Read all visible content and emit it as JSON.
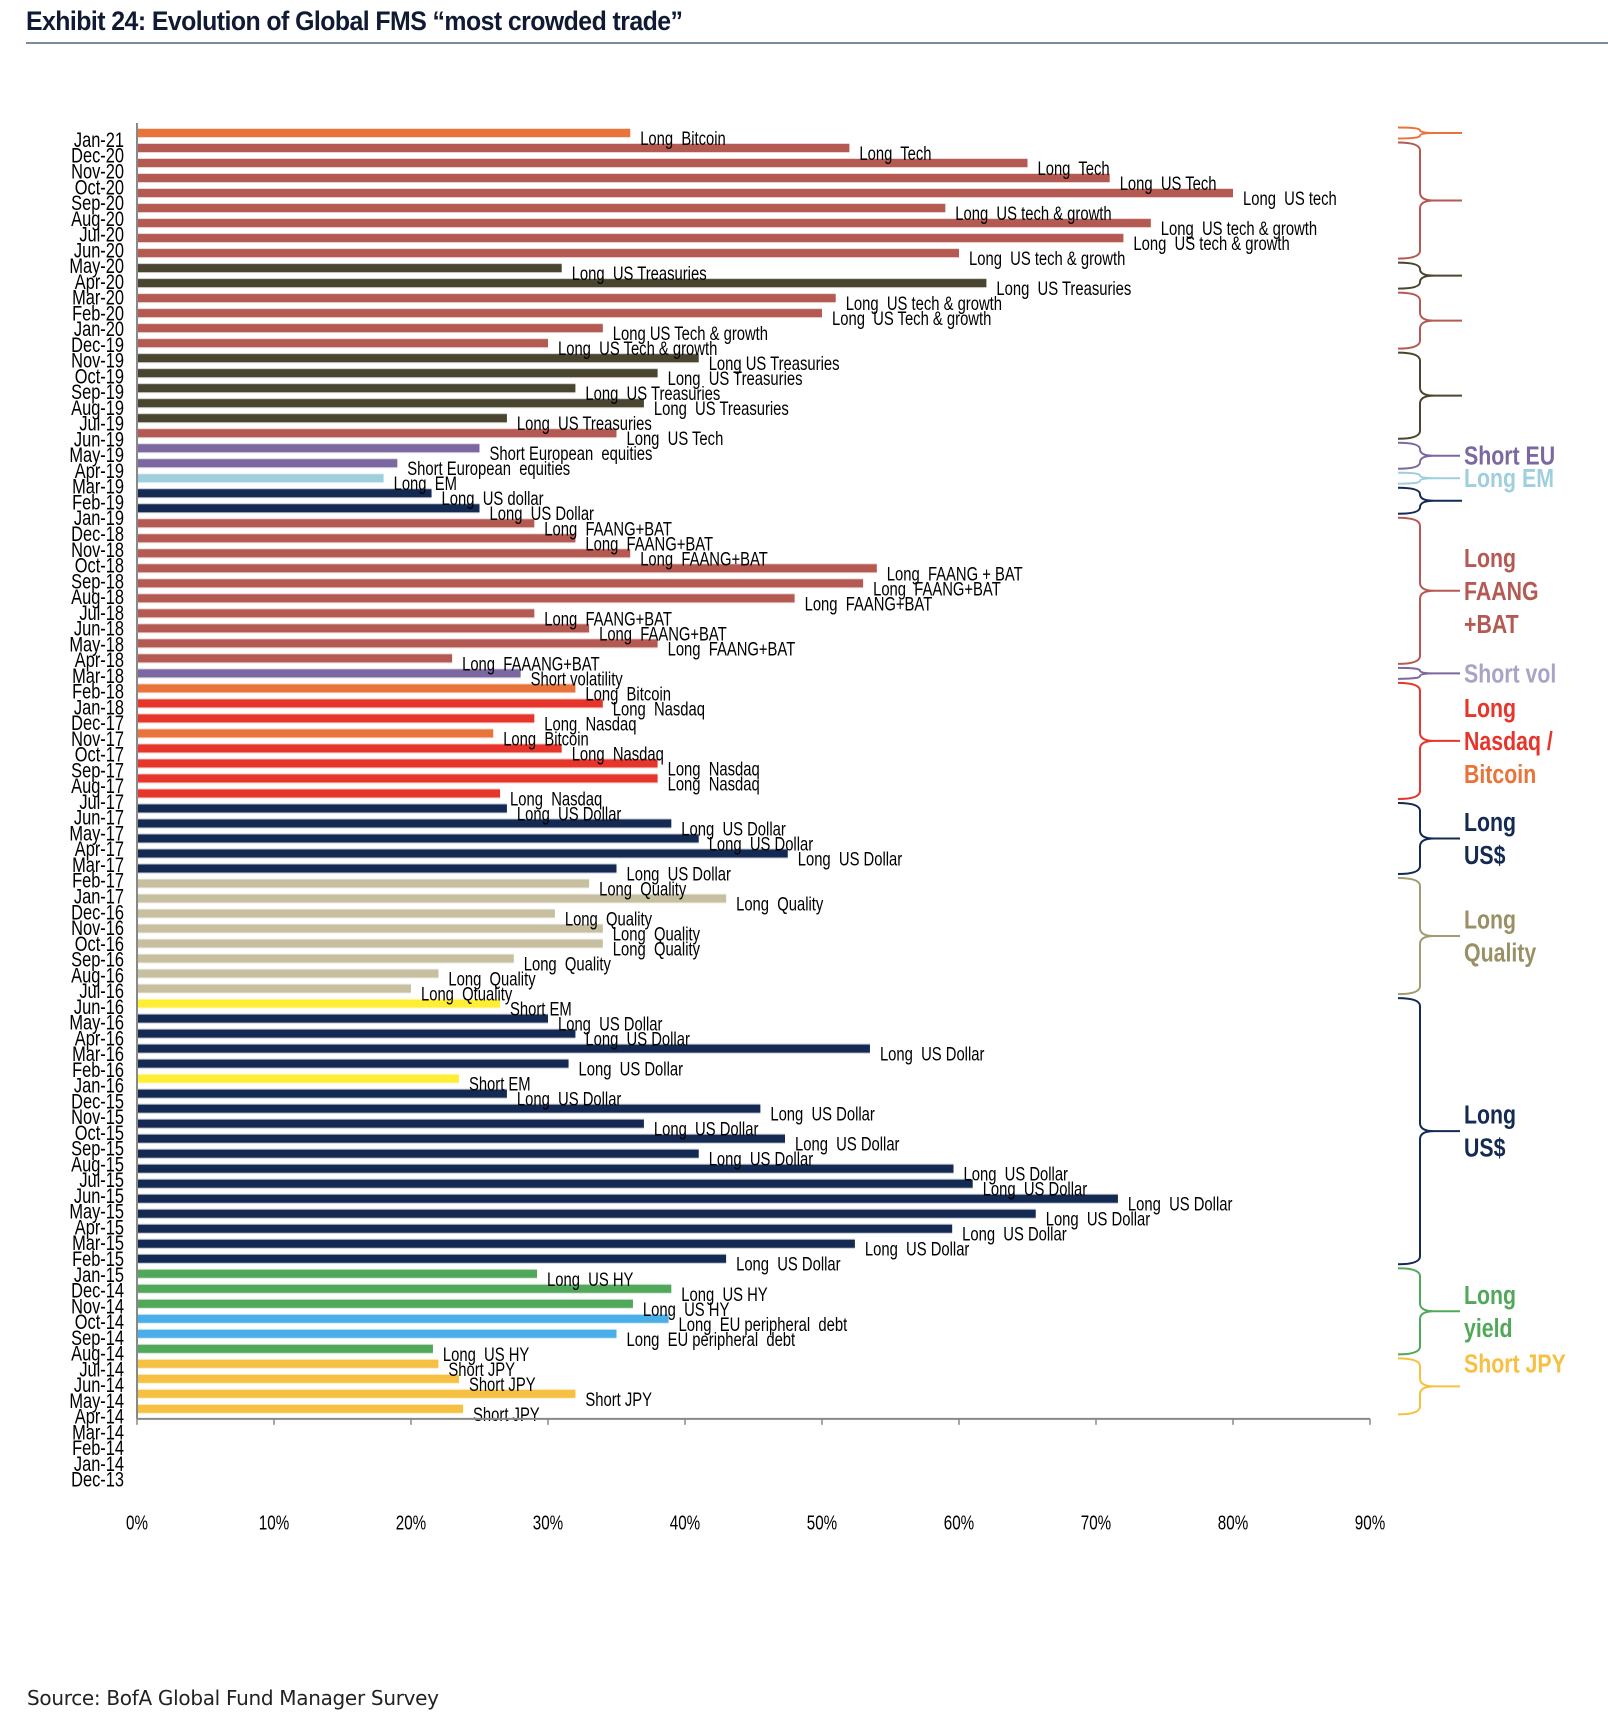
{
  "header": {
    "title": "Exhibit 24: Evolution of Global FMS “most crowded trade”"
  },
  "footer": {
    "source": "Source: BofA Global Fund Manager Survey"
  },
  "colors": {
    "bitcoin": "#e8743b",
    "tech": "#b45a52",
    "treasuries": "#4a4530",
    "short_eu": "#7b68a0",
    "long_em": "#9fcfdd",
    "usd": "#142a52",
    "short_vol": "#7b68a0",
    "nasdaq": "#e6362b",
    "quality": "#c6bfa0",
    "short_em": "#ffee33",
    "us_hy": "#52a85a",
    "eu_periph": "#4aaee8",
    "jpy": "#f6c043",
    "axis": "#888888"
  },
  "chart_data": {
    "type": "bar",
    "orientation": "horizontal",
    "title": "Exhibit 24: Evolution of Global FMS “most crowded trade”",
    "xlabel": "",
    "ylabel": "",
    "xlim": [
      0,
      90
    ],
    "x_ticks": [
      "0%",
      "10%",
      "20%",
      "30%",
      "40%",
      "50%",
      "60%",
      "70%",
      "80%",
      "90%"
    ],
    "grid": false,
    "legend": "right-side brackets",
    "bars": [
      {
        "date": "Jan-21",
        "value": 36,
        "label": "Long  Bitcoin",
        "color_key": "bitcoin"
      },
      {
        "date": "Dec-20",
        "value": 52,
        "label": "Long  Tech",
        "color_key": "tech"
      },
      {
        "date": "Nov-20",
        "value": 65,
        "label": "Long  Tech",
        "color_key": "tech"
      },
      {
        "date": "Oct-20",
        "value": 71,
        "label": "Long  US Tech",
        "color_key": "tech"
      },
      {
        "date": "Sep-20",
        "value": 80,
        "label": "Long  US tech",
        "color_key": "tech"
      },
      {
        "date": "Aug-20",
        "value": 59,
        "label": "Long  US tech & growth",
        "color_key": "tech"
      },
      {
        "date": "Jul-20",
        "value": 74,
        "label": "Long  US tech & growth",
        "color_key": "tech"
      },
      {
        "date": "Jun-20",
        "value": 72,
        "label": "Long  US tech & growth",
        "color_key": "tech"
      },
      {
        "date": "May-20",
        "value": 60,
        "label": "Long  US tech & growth",
        "color_key": "tech"
      },
      {
        "date": "Apr-20",
        "value": 31,
        "label": "Long  US Treasuries",
        "color_key": "treasuries"
      },
      {
        "date": "Mar-20",
        "value": 62,
        "label": "Long  US Treasuries",
        "color_key": "treasuries"
      },
      {
        "date": "Feb-20",
        "value": 51,
        "label": "Long  US tech & growth",
        "color_key": "tech"
      },
      {
        "date": "Jan-20",
        "value": 50,
        "label": "Long  US Tech & growth",
        "color_key": "tech"
      },
      {
        "date": "Dec-19",
        "value": 34,
        "label": "Long US Tech & growth",
        "color_key": "tech"
      },
      {
        "date": "Nov-19",
        "value": 30,
        "label": "Long  US Tech & growth",
        "color_key": "tech"
      },
      {
        "date": "Oct-19",
        "value": 41,
        "label": "Long US Treasuries",
        "color_key": "treasuries"
      },
      {
        "date": "Sep-19",
        "value": 38,
        "label": "Long  US Treasuries",
        "color_key": "treasuries"
      },
      {
        "date": "Aug-19",
        "value": 32,
        "label": "Long  US Treasuries",
        "color_key": "treasuries"
      },
      {
        "date": "Jul-19",
        "value": 37,
        "label": "Long  US Treasuries",
        "color_key": "treasuries"
      },
      {
        "date": "Jun-19",
        "value": 27,
        "label": "Long  US Treasuries",
        "color_key": "treasuries"
      },
      {
        "date": "May-19",
        "value": 35,
        "label": "Long  US Tech",
        "color_key": "tech"
      },
      {
        "date": "Apr-19",
        "value": 25,
        "label": "Short European  equities",
        "color_key": "short_eu"
      },
      {
        "date": "Mar-19",
        "value": 19,
        "label": "Short European  equities",
        "color_key": "short_eu"
      },
      {
        "date": "Feb-19",
        "value": 18,
        "label": "Long  EM",
        "color_key": "long_em"
      },
      {
        "date": "Jan-19",
        "value": 21.5,
        "label": "Long  US dollar",
        "color_key": "usd"
      },
      {
        "date": "Dec-18",
        "value": 25,
        "label": "Long  US Dollar",
        "color_key": "usd"
      },
      {
        "date": "Nov-18",
        "value": 29,
        "label": "Long  FAANG+BAT",
        "color_key": "tech"
      },
      {
        "date": "Oct-18",
        "value": 32,
        "label": "Long  FAANG+BAT",
        "color_key": "tech"
      },
      {
        "date": "Sep-18",
        "value": 36,
        "label": "Long  FAANG+BAT",
        "color_key": "tech"
      },
      {
        "date": "Aug-18",
        "value": 54,
        "label": "Long  FAANG + BAT",
        "color_key": "tech"
      },
      {
        "date": "Jul-18",
        "value": 53,
        "label": "Long  FAANG+BAT",
        "color_key": "tech"
      },
      {
        "date": "Jun-18",
        "value": 48,
        "label": "Long  FAANG+BAT",
        "color_key": "tech"
      },
      {
        "date": "May-18",
        "value": 29,
        "label": "Long  FAANG+BAT",
        "color_key": "tech"
      },
      {
        "date": "Apr-18",
        "value": 33,
        "label": "Long  FAANG+BAT",
        "color_key": "tech"
      },
      {
        "date": "Mar-18",
        "value": 38,
        "label": "Long  FAANG+BAT",
        "color_key": "tech"
      },
      {
        "date": "Feb-18",
        "value": 23,
        "label": "Long  FAAANG+BAT",
        "color_key": "tech"
      },
      {
        "date": "Jan-18",
        "value": 28,
        "label": "Short volatility",
        "color_key": "short_vol"
      },
      {
        "date": "Dec-17",
        "value": 32,
        "label": "Long  Bitcoin",
        "color_key": "bitcoin"
      },
      {
        "date": "Nov-17",
        "value": 34,
        "label": "Long  Nasdaq",
        "color_key": "nasdaq"
      },
      {
        "date": "Oct-17",
        "value": 29,
        "label": "Long  Nasdaq",
        "color_key": "nasdaq"
      },
      {
        "date": "Sep-17",
        "value": 26,
        "label": "Long  Bitcoin",
        "color_key": "bitcoin"
      },
      {
        "date": "Aug-17",
        "value": 31,
        "label": "Long  Nasdaq",
        "color_key": "nasdaq"
      },
      {
        "date": "Jul-17",
        "value": 38,
        "label": "Long  Nasdaq",
        "color_key": "nasdaq"
      },
      {
        "date": "Jun-17",
        "value": 38,
        "label": "Long  Nasdaq",
        "color_key": "nasdaq"
      },
      {
        "date": "May-17",
        "value": 26.5,
        "label": "Long  Nasdaq",
        "color_key": "nasdaq"
      },
      {
        "date": "Apr-17",
        "value": 27,
        "label": "Long  US Dollar",
        "color_key": "usd"
      },
      {
        "date": "Mar-17",
        "value": 39,
        "label": "Long  US Dollar",
        "color_key": "usd"
      },
      {
        "date": "Feb-17",
        "value": 41,
        "label": "Long  US Dollar",
        "color_key": "usd"
      },
      {
        "date": "Jan-17",
        "value": 47.5,
        "label": "Long  US Dollar",
        "color_key": "usd"
      },
      {
        "date": "Dec-16",
        "value": 35,
        "label": "Long  US Dollar",
        "color_key": "usd"
      },
      {
        "date": "Nov-16",
        "value": 33,
        "label": "Long  Quality",
        "color_key": "quality"
      },
      {
        "date": "Oct-16",
        "value": 43,
        "label": "Long  Quality",
        "color_key": "quality"
      },
      {
        "date": "Sep-16",
        "value": 30.5,
        "label": "Long  Quality",
        "color_key": "quality"
      },
      {
        "date": "Aug-16",
        "value": 34,
        "label": "Long  Quality",
        "color_key": "quality"
      },
      {
        "date": "Jul-16",
        "value": 34,
        "label": "Long  Quality",
        "color_key": "quality"
      },
      {
        "date": "Jun-16",
        "value": 27.5,
        "label": "Long  Quality",
        "color_key": "quality"
      },
      {
        "date": "May-16",
        "value": 22,
        "label": "Long  Quality",
        "color_key": "quality"
      },
      {
        "date": "Apr-16",
        "value": 20,
        "label": "Long  Qtuality",
        "color_key": "quality"
      },
      {
        "date": "Mar-16",
        "value": 26.5,
        "label": "Short EM",
        "color_key": "short_em"
      },
      {
        "date": "Feb-16",
        "value": 30,
        "label": "Long  US Dollar",
        "color_key": "usd"
      },
      {
        "date": "Jan-16",
        "value": 32,
        "label": "Long  US Dollar",
        "color_key": "usd"
      },
      {
        "date": "Dec-15",
        "value": 53.5,
        "label": "Long  US Dollar",
        "color_key": "usd"
      },
      {
        "date": "Nov-15",
        "value": 31.5,
        "label": "Long  US Dollar",
        "color_key": "usd"
      },
      {
        "date": "Oct-15",
        "value": 23.5,
        "label": "Short EM",
        "color_key": "short_em"
      },
      {
        "date": "Sep-15",
        "value": 27,
        "label": "Long  US Dollar",
        "color_key": "usd"
      },
      {
        "date": "Aug-15",
        "value": 45.5,
        "label": "Long  US Dollar",
        "color_key": "usd"
      },
      {
        "date": "Jul-15",
        "value": 37,
        "label": "Long  US Dollar",
        "color_key": "usd"
      },
      {
        "date": "Jun-15",
        "value": 47.3,
        "label": "Long  US Dollar",
        "color_key": "usd"
      },
      {
        "date": "May-15",
        "value": 41,
        "label": "Long  US Dollar",
        "color_key": "usd"
      },
      {
        "date": "Apr-15",
        "value": 59.6,
        "label": "Long  US Dollar",
        "color_key": "usd"
      },
      {
        "date": "Mar-15",
        "value": 61,
        "label": "Long  US Dollar",
        "color_key": "usd"
      },
      {
        "date": "Feb-15",
        "value": 71.6,
        "label": "Long  US Dollar",
        "color_key": "usd"
      },
      {
        "date": "Jan-15",
        "value": 65.6,
        "label": "Long  US Dollar",
        "color_key": "usd"
      },
      {
        "date": "Dec-14",
        "value": 59.5,
        "label": "Long  US Dollar",
        "color_key": "usd"
      },
      {
        "date": "Nov-14",
        "value": 52.4,
        "label": "Long  US Dollar",
        "color_key": "usd"
      },
      {
        "date": "Oct-14",
        "value": 43,
        "label": "Long  US Dollar",
        "color_key": "usd"
      },
      {
        "date": "Sep-14",
        "value": 29.2,
        "label": "Long  US HY",
        "color_key": "us_hy"
      },
      {
        "date": "Aug-14",
        "value": 39,
        "label": "Long  US HY",
        "color_key": "us_hy"
      },
      {
        "date": "Jul-14",
        "value": 36.2,
        "label": "Long  US HY",
        "color_key": "us_hy"
      },
      {
        "date": "Jun-14",
        "value": 38.8,
        "label": "Long  EU peripheral  debt",
        "color_key": "eu_periph"
      },
      {
        "date": "May-14",
        "value": 35,
        "label": "Long  EU peripheral  debt",
        "color_key": "eu_periph"
      },
      {
        "date": "Apr-14",
        "value": 21.6,
        "label": "Long  US HY",
        "color_key": "us_hy"
      },
      {
        "date": "Mar-14",
        "value": 22,
        "label": "Short JPY",
        "color_key": "jpy"
      },
      {
        "date": "Feb-14",
        "value": 23.5,
        "label": "Short JPY",
        "color_key": "jpy"
      },
      {
        "date": "Jan-14",
        "value": 32,
        "label": "Short JPY",
        "color_key": "jpy"
      },
      {
        "date": "Dec-13",
        "value": 23.8,
        "label": "Short JPY",
        "color_key": "jpy"
      }
    ],
    "groups": [
      {
        "from": "Jan-21",
        "to": "Jan-21",
        "color_key": "bitcoin",
        "lines": []
      },
      {
        "from": "Dec-20",
        "to": "May-20",
        "color_key": "tech",
        "lines": []
      },
      {
        "from": "Apr-20",
        "to": "Mar-20",
        "color_key": "treasuries",
        "lines": []
      },
      {
        "from": "Feb-20",
        "to": "Nov-19",
        "color_key": "tech",
        "lines": []
      },
      {
        "from": "Oct-19",
        "to": "May-19",
        "color_key": "treasuries",
        "lines": []
      },
      {
        "from": "Apr-19",
        "to": "Mar-19",
        "color_key": "short_eu",
        "lines": [
          "Short EU"
        ]
      },
      {
        "from": "Feb-19",
        "to": "Feb-19",
        "color_key": "long_em",
        "lines": [
          "Long EM"
        ]
      },
      {
        "from": "Jan-19",
        "to": "Dec-18",
        "color_key": "usd",
        "lines": []
      },
      {
        "from": "Nov-18",
        "to": "Feb-18",
        "color_key": "tech",
        "lines": [
          "Long",
          "FAANG",
          "+BAT"
        ]
      },
      {
        "from": "Jan-18",
        "to": "Jan-18",
        "color_key": "short_vol",
        "lines": [
          "Short vol"
        ],
        "text_color": "#a9a3c6"
      },
      {
        "from": "Dec-17",
        "to": "May-17",
        "color_key": "nasdaq",
        "lines": [
          "Long",
          "Nasdaq /",
          "Bitcoin"
        ],
        "line_colors": [
          "#e6362b",
          "#e6362b",
          "#e8743b"
        ]
      },
      {
        "from": "Apr-17",
        "to": "Dec-16",
        "color_key": "usd",
        "lines": [
          "Long",
          "US$"
        ]
      },
      {
        "from": "Nov-16",
        "to": "Apr-16",
        "color_key": "quality",
        "lines": [
          "Long",
          "Quality"
        ],
        "text_color": "#9a9066",
        "bracket_color": "#a39b73"
      },
      {
        "from": "Mar-16",
        "to": "Oct-14",
        "color_key": "usd",
        "lines": [
          "Long",
          "US$"
        ]
      },
      {
        "from": "Sep-14",
        "to": "Apr-14",
        "color_key": "us_hy",
        "lines": [
          "Long",
          "yield"
        ]
      },
      {
        "from": "Mar-14",
        "to": "Dec-13",
        "color_key": "jpy",
        "lines": [
          "Short JPY"
        ],
        "text_top": true
      }
    ]
  }
}
